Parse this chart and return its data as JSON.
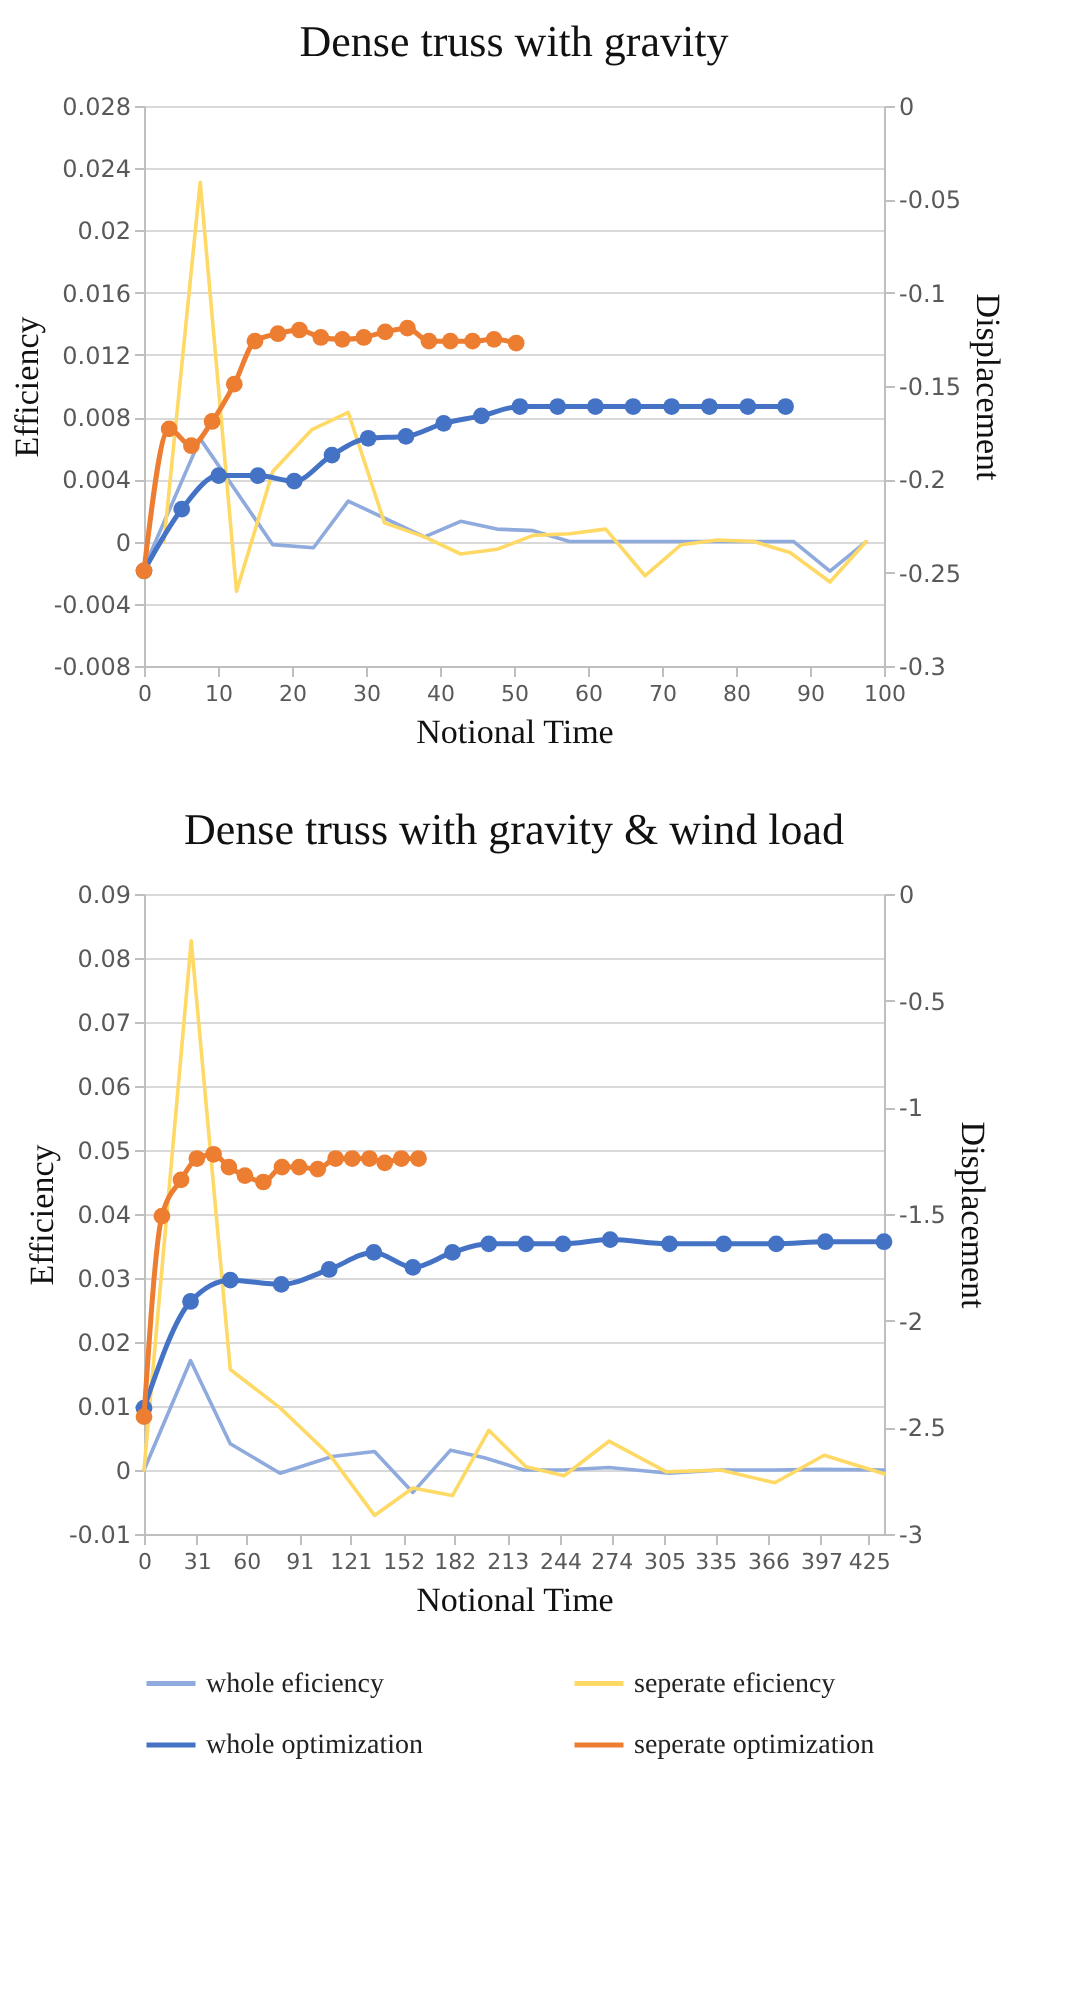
{
  "chart_data": [
    {
      "type": "line",
      "title": "Dense truss with gravity",
      "xlabel": "Notional Time",
      "ylabel": "Efficiency",
      "y2label": "Displacement",
      "xlim": [
        0,
        100
      ],
      "xticks": [
        0,
        10,
        20,
        30,
        40,
        50,
        60,
        70,
        80,
        90,
        100
      ],
      "ylim": [
        -0.008,
        0.028
      ],
      "yticks": [
        -0.008,
        -0.004,
        0,
        0.004,
        0.008,
        0.012,
        0.016,
        0.02,
        0.024,
        0.028
      ],
      "y2lim": [
        -0.3,
        0
      ],
      "y2ticks": [
        -0.3,
        -0.25,
        -0.2,
        -0.15,
        -0.1,
        -0.05,
        0
      ],
      "grid": "y",
      "series": [
        {
          "color": "#8faadc",
          "marker": "none",
          "x": [
            0,
            7.6,
            17.4,
            22.9,
            27.6,
            37.9,
            42.8,
            47.7,
            52.6,
            57.5,
            62.4,
            66.8,
            72,
            77,
            82.4,
            87.8,
            92.7,
            97.6
          ],
          "values": [
            -0.0017,
            0.0066,
            -0.0002,
            -0.0004,
            0.0026,
            0.0003,
            0.0013,
            0.0008,
            0.0007,
            0,
            0,
            0,
            0,
            0,
            0,
            0,
            -0.0019,
            0
          ]
        },
        {
          "color": "#ffd966",
          "marker": "none",
          "x": [
            2.7,
            7.6,
            12.5,
            17.4,
            22.7,
            27.6,
            32.5,
            37.9,
            42.8,
            47.7,
            52.6,
            57.5,
            62.4,
            67.7,
            72.6,
            77.5,
            82.4,
            87.3,
            92.7,
            97.6
          ],
          "values": [
            0,
            0.0231,
            -0.0032,
            0.0045,
            0.0072,
            0.0083,
            0.0012,
            0.0003,
            -0.0008,
            -0.0005,
            0.0004,
            0.0005,
            0.0008,
            -0.0022,
            -0.0002,
            0.0001,
            0,
            -0.0007,
            -0.0026,
            0
          ]
        },
        {
          "color": "#4472c4",
          "marker": "circle",
          "axis": "y2",
          "x": [
            0,
            5.1,
            10.1,
            15.4,
            20.3,
            25.4,
            30.3,
            35.4,
            40.5,
            45.6,
            50.8,
            55.9,
            61,
            66.1,
            71.3,
            76.4,
            81.6,
            86.7
          ],
          "values": [
            -0.249,
            -0.216,
            -0.198,
            -0.198,
            -0.201,
            -0.187,
            -0.178,
            -0.177,
            -0.17,
            -0.166,
            -0.161,
            -0.161,
            -0.161,
            -0.161,
            -0.161,
            -0.161,
            -0.161,
            -0.161
          ]
        },
        {
          "color": "#ed7d31",
          "marker": "circle",
          "axis": "y2",
          "x": [
            0,
            3.4,
            6.4,
            9.2,
            12.2,
            15,
            18.1,
            21,
            23.9,
            26.8,
            29.7,
            32.6,
            35.6,
            38.5,
            41.4,
            44.4,
            47.3,
            50.3
          ],
          "values": [
            -0.249,
            -0.173,
            -0.182,
            -0.169,
            -0.149,
            -0.126,
            -0.122,
            -0.12,
            -0.124,
            -0.125,
            -0.124,
            -0.121,
            -0.119,
            -0.126,
            -0.126,
            -0.126,
            -0.125,
            -0.127
          ]
        }
      ]
    },
    {
      "type": "line",
      "title": "Dense truss with gravity & wind load",
      "xlabel": "Notional Time",
      "ylabel": "Efficiency",
      "y2label": "Displacement",
      "xlim": [
        0,
        434
      ],
      "xticks": [
        0,
        31,
        60,
        91,
        121,
        152,
        182,
        213,
        244,
        274,
        305,
        335,
        366,
        397,
        425
      ],
      "ylim": [
        -0.01,
        0.09
      ],
      "yticks": [
        -0.01,
        0,
        0.01,
        0.02,
        0.03,
        0.04,
        0.05,
        0.06,
        0.07,
        0.08,
        0.09
      ],
      "y2lim": [
        -3,
        0
      ],
      "y2ticks": [
        -3,
        -2.5,
        -2,
        -1.5,
        -1,
        -0.5,
        0
      ],
      "grid": "y",
      "legend": "bottom",
      "series": [
        {
          "name": "whole eficiency",
          "color": "#8faadc",
          "marker": "none",
          "x": [
            0,
            27.3,
            50.6,
            79.8,
            110.5,
            135.2,
            157.7,
            179.8,
            199.6,
            222.8,
            245.7,
            272.7,
            308,
            338,
            370,
            398,
            434
          ],
          "values": [
            0,
            0.0171,
            0.0041,
            -0.0005,
            0.0021,
            0.0029,
            -0.0035,
            0.0031,
            0.0019,
            0,
            0,
            0.0004,
            -0.0005,
            0,
            0,
            0.0001,
            0
          ]
        },
        {
          "name": "seperate eficiency",
          "color": "#ffd966",
          "marker": "none",
          "x": [
            0,
            27.7,
            50.6,
            79.8,
            109.7,
            135.2,
            157.7,
            180.9,
            202.2,
            224,
            246.4,
            272.7,
            306.4,
            338,
            370,
            398.9,
            434
          ],
          "values": [
            0,
            0.0827,
            0.0157,
            0.0097,
            0.0021,
            -0.0071,
            -0.0028,
            -0.004,
            0.0062,
            0.0005,
            -0.0009,
            0.0045,
            -0.0003,
            0,
            -0.002,
            0.0023,
            -0.0006
          ]
        },
        {
          "name": "whole optimization",
          "color": "#4472c4",
          "marker": "circle",
          "axis": "y2",
          "x": [
            0,
            27.3,
            50.6,
            80.5,
            108.6,
            134.8,
            157.7,
            180.9,
            202.2,
            224,
            245.7,
            273.4,
            308.2,
            340,
            370.8,
            399.6,
            434
          ],
          "values": [
            -2.41,
            -1.91,
            -1.81,
            -1.83,
            -1.76,
            -1.68,
            -1.75,
            -1.68,
            -1.64,
            -1.64,
            -1.64,
            -1.62,
            -1.64,
            -1.64,
            -1.64,
            -1.63,
            -1.63
          ]
        },
        {
          "name": "seperate optimization",
          "color": "#ed7d31",
          "marker": "circle",
          "axis": "y2",
          "x": [
            0,
            10.5,
            21.7,
            31,
            40.8,
            49.8,
            59.2,
            70,
            80.9,
            91,
            101.9,
            112.4,
            122.1,
            132.2,
            141.2,
            150.9,
            161
          ],
          "values": [
            -2.45,
            -1.51,
            -1.34,
            -1.24,
            -1.22,
            -1.28,
            -1.32,
            -1.35,
            -1.28,
            -1.28,
            -1.29,
            -1.24,
            -1.24,
            -1.24,
            -1.26,
            -1.24,
            -1.24
          ]
        }
      ]
    }
  ]
}
